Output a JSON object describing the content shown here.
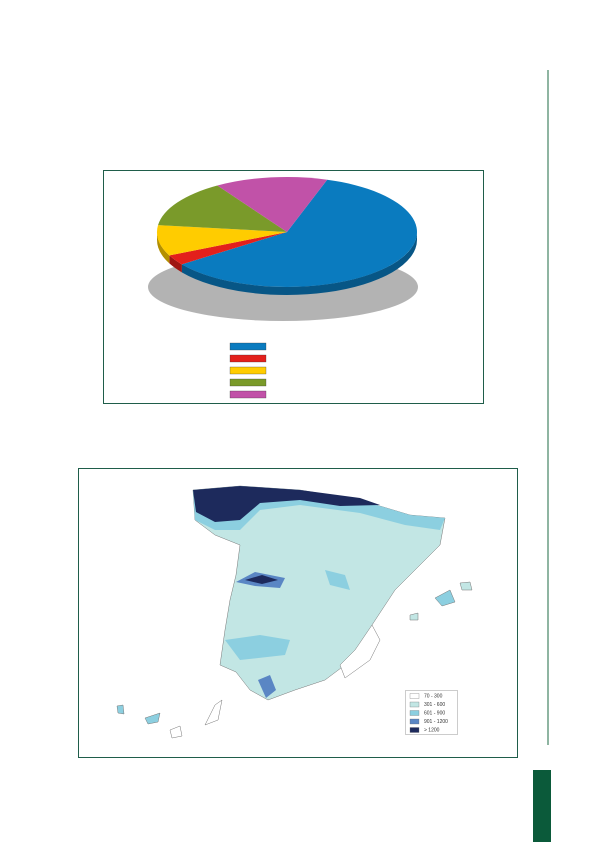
{
  "chart_data": {
    "type": "pie",
    "categories": [
      null,
      null,
      null,
      null,
      null
    ],
    "values": [
      60,
      3,
      9,
      14,
      14
    ],
    "colors": [
      "#0a7bbf",
      "#e3201b",
      "#ffcc00",
      "#7a9a2a",
      "#c152a8"
    ],
    "start_angle": -72
  },
  "map": {
    "legend": {
      "labels": [
        "70 - 300",
        "301 - 600",
        "601 - 900",
        "901 - 1200",
        "> 1200"
      ],
      "colors": [
        "#ffffff",
        "#c2e6e4",
        "#8ccfe0",
        "#5a86c4",
        "#1d2a5c"
      ]
    }
  }
}
